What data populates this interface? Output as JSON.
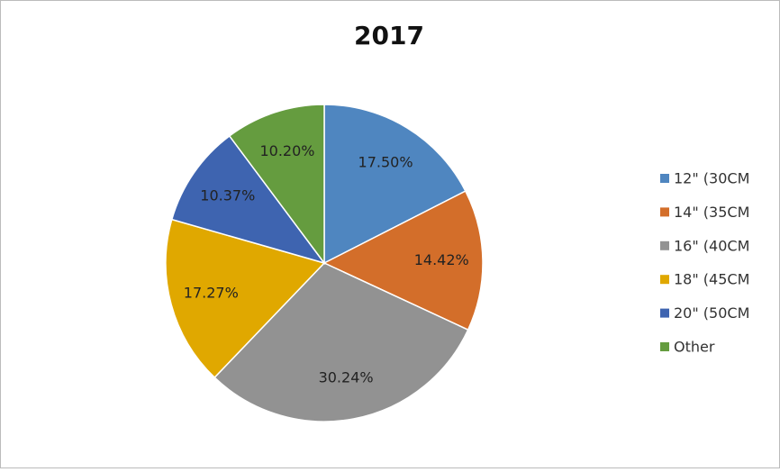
{
  "chart_data": {
    "type": "pie",
    "title": "2017",
    "categories": [
      "12\" (30CM",
      "14\" (35CM",
      "16\" (40CM",
      "18\" (45CM",
      "20\" (50CM",
      "Other"
    ],
    "values": [
      17.5,
      14.42,
      30.24,
      17.27,
      10.37,
      10.2
    ],
    "value_labels": [
      "17.50%",
      "14.42%",
      "30.24%",
      "17.27%",
      "10.37%",
      "10.20%"
    ],
    "colors": [
      "#4f86c0",
      "#d36e2a",
      "#929292",
      "#e0a800",
      "#3e64b0",
      "#659c3f"
    ],
    "legend": "right"
  }
}
